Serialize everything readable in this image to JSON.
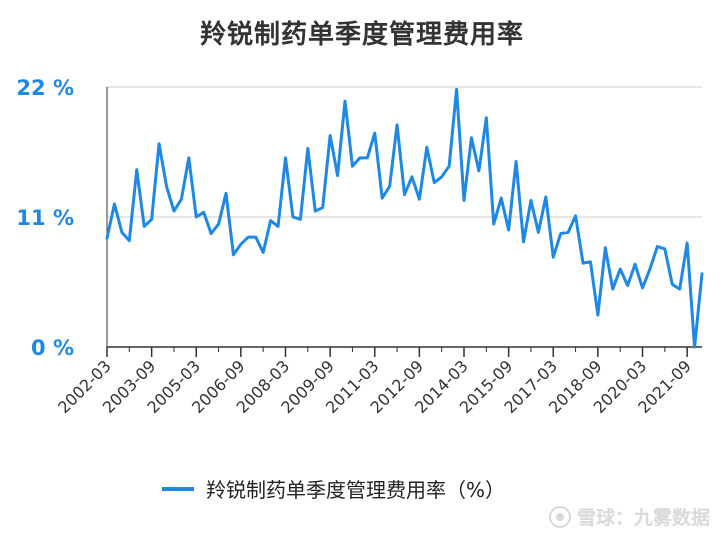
{
  "chart_data": {
    "type": "line",
    "title": "羚锐制药单季度管理费用率",
    "ylabel": "",
    "xlabel": "",
    "ylim": [
      0,
      22
    ],
    "yticks": [
      "0 %",
      "11 %",
      "22 %"
    ],
    "ytick_values": [
      0,
      11,
      22
    ],
    "xtick_labels": [
      "2002-03",
      "2003-09",
      "2005-03",
      "2006-09",
      "2008-03",
      "2009-09",
      "2011-03",
      "2012-09",
      "2014-03",
      "2015-09",
      "2017-03",
      "2018-09",
      "2020-03",
      "2021-09"
    ],
    "xtick_indices": [
      0,
      6,
      12,
      18,
      24,
      30,
      36,
      42,
      48,
      54,
      60,
      66,
      72,
      78
    ],
    "legend": "bottom",
    "grid": "horizontal",
    "series": [
      {
        "name": "羚锐制药单季度管理费用率（%）",
        "color": "#1E88E5",
        "values": [
          9.2,
          12.1,
          9.7,
          9.0,
          15.0,
          10.2,
          10.8,
          17.2,
          13.6,
          11.5,
          12.5,
          16.0,
          11.0,
          11.4,
          9.6,
          10.4,
          13.0,
          7.8,
          8.7,
          9.3,
          9.3,
          8.0,
          10.7,
          10.2,
          16.0,
          11.0,
          10.8,
          16.8,
          11.5,
          11.8,
          17.9,
          14.5,
          20.8,
          15.3,
          16.0,
          16.0,
          18.1,
          12.6,
          13.6,
          18.8,
          12.9,
          14.4,
          12.5,
          16.9,
          13.9,
          14.4,
          15.3,
          21.8,
          12.4,
          17.7,
          14.9,
          19.4,
          10.4,
          12.6,
          9.9,
          15.7,
          8.9,
          12.4,
          9.7,
          12.7,
          7.6,
          9.6,
          9.7,
          11.1,
          7.1,
          7.2,
          2.7,
          8.4,
          4.9,
          6.6,
          5.2,
          7.0,
          5.0,
          6.6,
          8.5,
          8.3,
          5.3,
          4.9,
          8.8,
          0.0,
          6.2
        ]
      }
    ]
  },
  "watermark": "雪球：九雾数据"
}
